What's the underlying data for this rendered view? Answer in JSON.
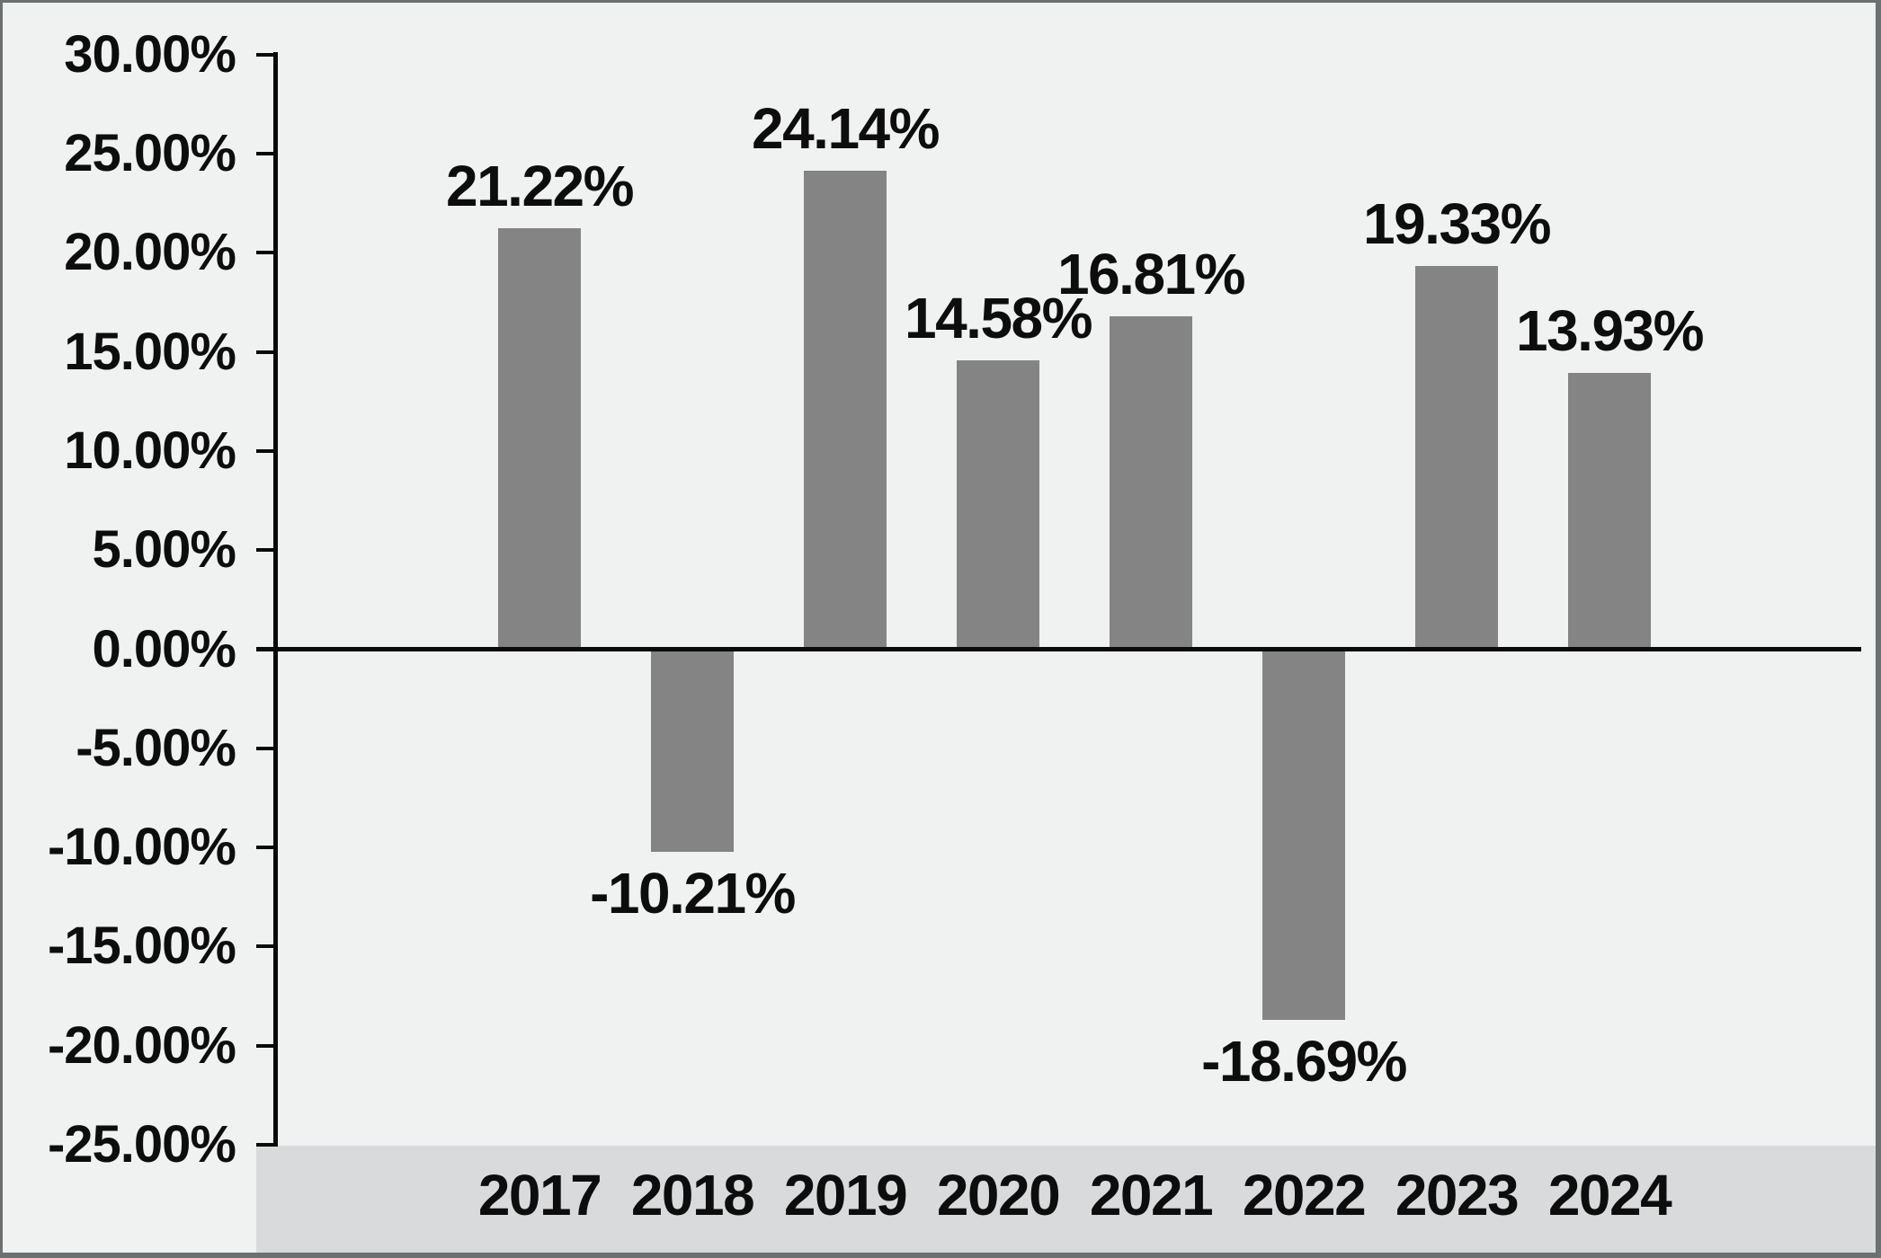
{
  "chart_data": {
    "type": "bar",
    "title": "",
    "xlabel": "",
    "ylabel": "",
    "categories": [
      "2017",
      "2018",
      "2019",
      "2020",
      "2021",
      "2022",
      "2023",
      "2024"
    ],
    "values": [
      21.22,
      -10.21,
      24.14,
      14.58,
      16.81,
      -18.69,
      19.33,
      13.93
    ],
    "data_labels": [
      "21.22%",
      "-10.21%",
      "24.14%",
      "14.58%",
      "16.81%",
      "-18.69%",
      "19.33%",
      "13.93%"
    ],
    "series_name": "",
    "y_axis": {
      "min": -25,
      "max": 30,
      "step": 5,
      "tick_labels": [
        "30.00%",
        "25.00%",
        "20.00%",
        "15.00%",
        "10.00%",
        "5.00%",
        "0.00%",
        "-5.00%",
        "-10.00%",
        "-15.00%",
        "-20.00%",
        "-25.00%"
      ]
    },
    "grid": "off",
    "legend": "none",
    "colors": {
      "bar": "#848484",
      "background": "#f0f1f1",
      "category_strip": "#d9dadb",
      "axis_line": "#0a0a0a",
      "text": "#0d0d0d",
      "border": "#6b7070"
    }
  }
}
